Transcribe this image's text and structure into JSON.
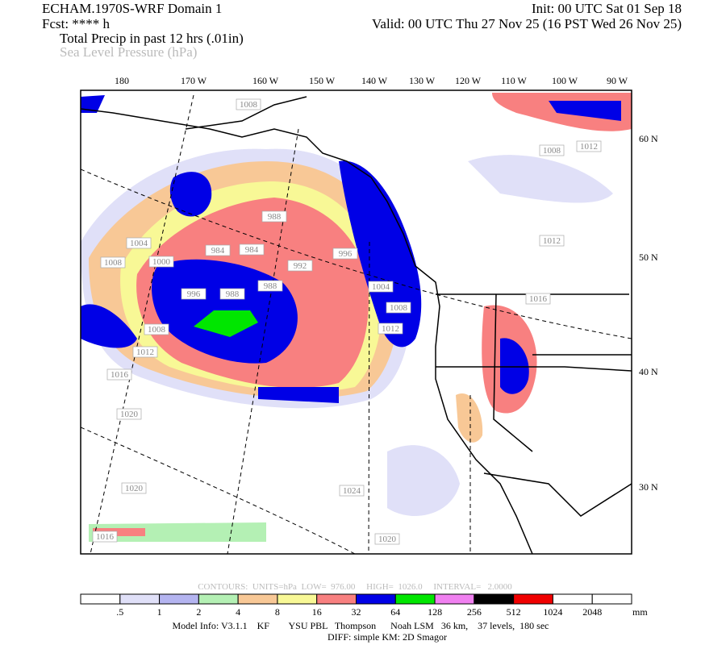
{
  "header": {
    "title": "ECHAM.1970S-WRF Domain 1",
    "init": "Init: 00 UTC Sat 01 Sep 18",
    "fcst": "Fcst: **** h",
    "valid": "Valid: 00 UTC Thu 27 Nov 25 (16 PST Wed 26 Nov 25)",
    "field1": "Total Precip in past 12 hrs (.01in)",
    "field2": "Sea Level Pressure (hPa)"
  },
  "map": {
    "lon_labels": [
      "180",
      "170 W",
      "160 W",
      "150 W",
      "140 W",
      "130 W",
      "120 W",
      "110 W",
      "100 W",
      "90 W"
    ],
    "lat_labels": [
      "60 N",
      "50 N",
      "40 N",
      "30 N"
    ],
    "contour_labels": [
      "1008",
      "1000",
      "996",
      "988",
      "984",
      "984",
      "988",
      "992",
      "996",
      "988",
      "1004",
      "1008",
      "1008",
      "1012",
      "1004",
      "1008",
      "1012",
      "1016",
      "1020",
      "1020",
      "1024",
      "1020",
      "1016",
      "1012",
      "1008",
      "1016",
      "1012"
    ]
  },
  "colorbar": {
    "labels": [
      ".5",
      "1",
      "2",
      "4",
      "8",
      "16",
      "32",
      "64",
      "128",
      "256",
      "512",
      "1024",
      "2048"
    ],
    "unit": "mm",
    "colors": [
      "#ffffff",
      "#e0e0f8",
      "#b4b4f0",
      "#b4f0b4",
      "#f8c896",
      "#f8f896",
      "#f88080",
      "#0000e6",
      "#00e600",
      "#f080f0",
      "#000000",
      "#f00000",
      "#ffffff",
      "#ffffff"
    ]
  },
  "footer": {
    "contours": "CONTOURS:  UNITS=hPa  LOW=  976.00     HIGH=  1026.0     INTERVAL=   2.0000",
    "model": "Model Info: V3.1.1    KF        YSU PBL   Thompson      Noah LSM   36 km,    37 levels,  180 sec",
    "diff": "DIFF: simple KM: 2D Smagor"
  }
}
